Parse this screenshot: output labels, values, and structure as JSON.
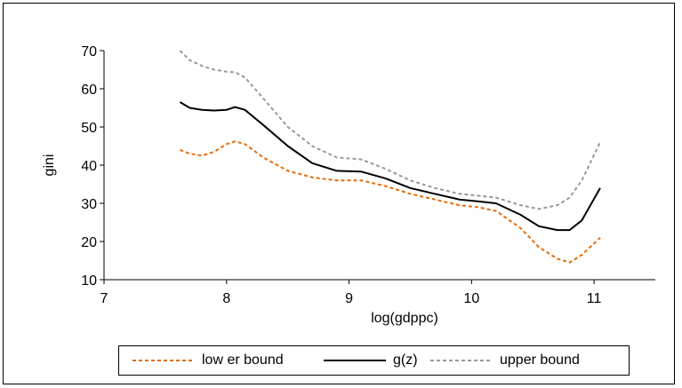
{
  "chart_data": {
    "type": "line",
    "title": "",
    "xlabel": "log(gdppc)",
    "ylabel": "gini",
    "xlim": [
      7,
      11.5
    ],
    "ylim": [
      10,
      70
    ],
    "xticks": [
      "7",
      "8",
      "9",
      "10",
      "11"
    ],
    "yticks": [
      "10",
      "20",
      "30",
      "40",
      "50",
      "60",
      "70"
    ],
    "grid": false,
    "legend_position": "bottom",
    "series": [
      {
        "name": "low er bound",
        "color": "#E36C09",
        "dash": "dashed",
        "x": [
          7.62,
          7.7,
          7.8,
          7.9,
          8.0,
          8.07,
          8.15,
          8.3,
          8.5,
          8.7,
          8.9,
          9.1,
          9.3,
          9.5,
          9.7,
          9.9,
          10.05,
          10.2,
          10.4,
          10.55,
          10.7,
          10.8,
          10.9,
          11.05
        ],
        "y": [
          44,
          43,
          42.5,
          43.5,
          45.5,
          46.2,
          45.5,
          42,
          38.5,
          36.8,
          36,
          36,
          34.5,
          32.5,
          31,
          29.5,
          29,
          28,
          23.5,
          18.5,
          15.5,
          14.5,
          16.5,
          21
        ]
      },
      {
        "name": "g(z)",
        "color": "#000000",
        "dash": "solid",
        "x": [
          7.62,
          7.7,
          7.8,
          7.9,
          8.0,
          8.07,
          8.15,
          8.3,
          8.5,
          8.7,
          8.9,
          9.1,
          9.3,
          9.5,
          9.7,
          9.9,
          10.05,
          10.2,
          10.4,
          10.55,
          10.7,
          10.8,
          10.9,
          11.05
        ],
        "y": [
          56.5,
          55,
          54.5,
          54.3,
          54.5,
          55.2,
          54.5,
          50.5,
          45,
          40.5,
          38.5,
          38.3,
          36.5,
          34,
          32.5,
          31,
          30.5,
          30,
          27,
          24,
          23,
          23,
          25.5,
          34
        ]
      },
      {
        "name": "upper bound",
        "color": "#999999",
        "dash": "dashed",
        "x": [
          7.62,
          7.7,
          7.8,
          7.9,
          8.0,
          8.07,
          8.15,
          8.3,
          8.5,
          8.7,
          8.9,
          9.1,
          9.3,
          9.5,
          9.7,
          9.9,
          10.05,
          10.2,
          10.4,
          10.55,
          10.7,
          10.8,
          10.9,
          11.05
        ],
        "y": [
          70,
          67.5,
          66,
          65,
          64.5,
          64.3,
          63,
          57.5,
          50,
          45,
          42,
          41.5,
          39,
          36,
          34,
          32.5,
          32,
          31.5,
          29.5,
          28.5,
          29.5,
          31.5,
          36,
          46
        ]
      }
    ]
  }
}
